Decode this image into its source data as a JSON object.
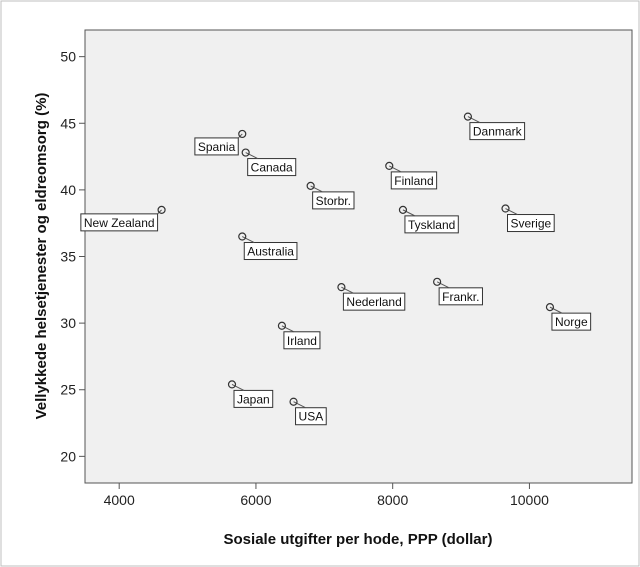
{
  "chart_data": {
    "type": "scatter",
    "xlabel": "Sosiale utgifter per hode, PPP (dollar)",
    "ylabel": "Vellykkede helsetjenester og eldreomsorg (%)",
    "xlim": [
      3500,
      11500
    ],
    "ylim": [
      18,
      52
    ],
    "xticks": [
      4000,
      6000,
      8000,
      10000
    ],
    "yticks": [
      20,
      25,
      30,
      35,
      40,
      45,
      50
    ],
    "grid": false,
    "colors": {
      "plot_background": "#f0f0f0",
      "marker": "#333333",
      "label_background": "#ffffff"
    },
    "points": [
      {
        "label": "Danmark",
        "x": 9100,
        "y": 45.5,
        "label_side": "below-right"
      },
      {
        "label": "Spania",
        "x": 5800,
        "y": 44.2,
        "label_side": "below-left"
      },
      {
        "label": "Canada",
        "x": 5850,
        "y": 42.8,
        "label_side": "below-right"
      },
      {
        "label": "Finland",
        "x": 7950,
        "y": 41.8,
        "label_side": "below-right"
      },
      {
        "label": "Storbr.",
        "x": 6800,
        "y": 40.3,
        "label_side": "below-right"
      },
      {
        "label": "New Zealand",
        "x": 4620,
        "y": 38.5,
        "label_side": "below-left"
      },
      {
        "label": "Sverige",
        "x": 9650,
        "y": 38.6,
        "label_side": "below-right"
      },
      {
        "label": "Tyskland",
        "x": 8150,
        "y": 38.5,
        "label_side": "below-right"
      },
      {
        "label": "Australia",
        "x": 5800,
        "y": 36.5,
        "label_side": "below-right"
      },
      {
        "label": "Frankr.",
        "x": 8650,
        "y": 33.1,
        "label_side": "below-right"
      },
      {
        "label": "Nederland",
        "x": 7250,
        "y": 32.7,
        "label_side": "below-right"
      },
      {
        "label": "Norge",
        "x": 10300,
        "y": 31.2,
        "label_side": "below-right"
      },
      {
        "label": "Irland",
        "x": 6380,
        "y": 29.8,
        "label_side": "below-right"
      },
      {
        "label": "Japan",
        "x": 5650,
        "y": 25.4,
        "label_side": "below-right"
      },
      {
        "label": "USA",
        "x": 6550,
        "y": 24.1,
        "label_side": "below-right"
      }
    ]
  }
}
